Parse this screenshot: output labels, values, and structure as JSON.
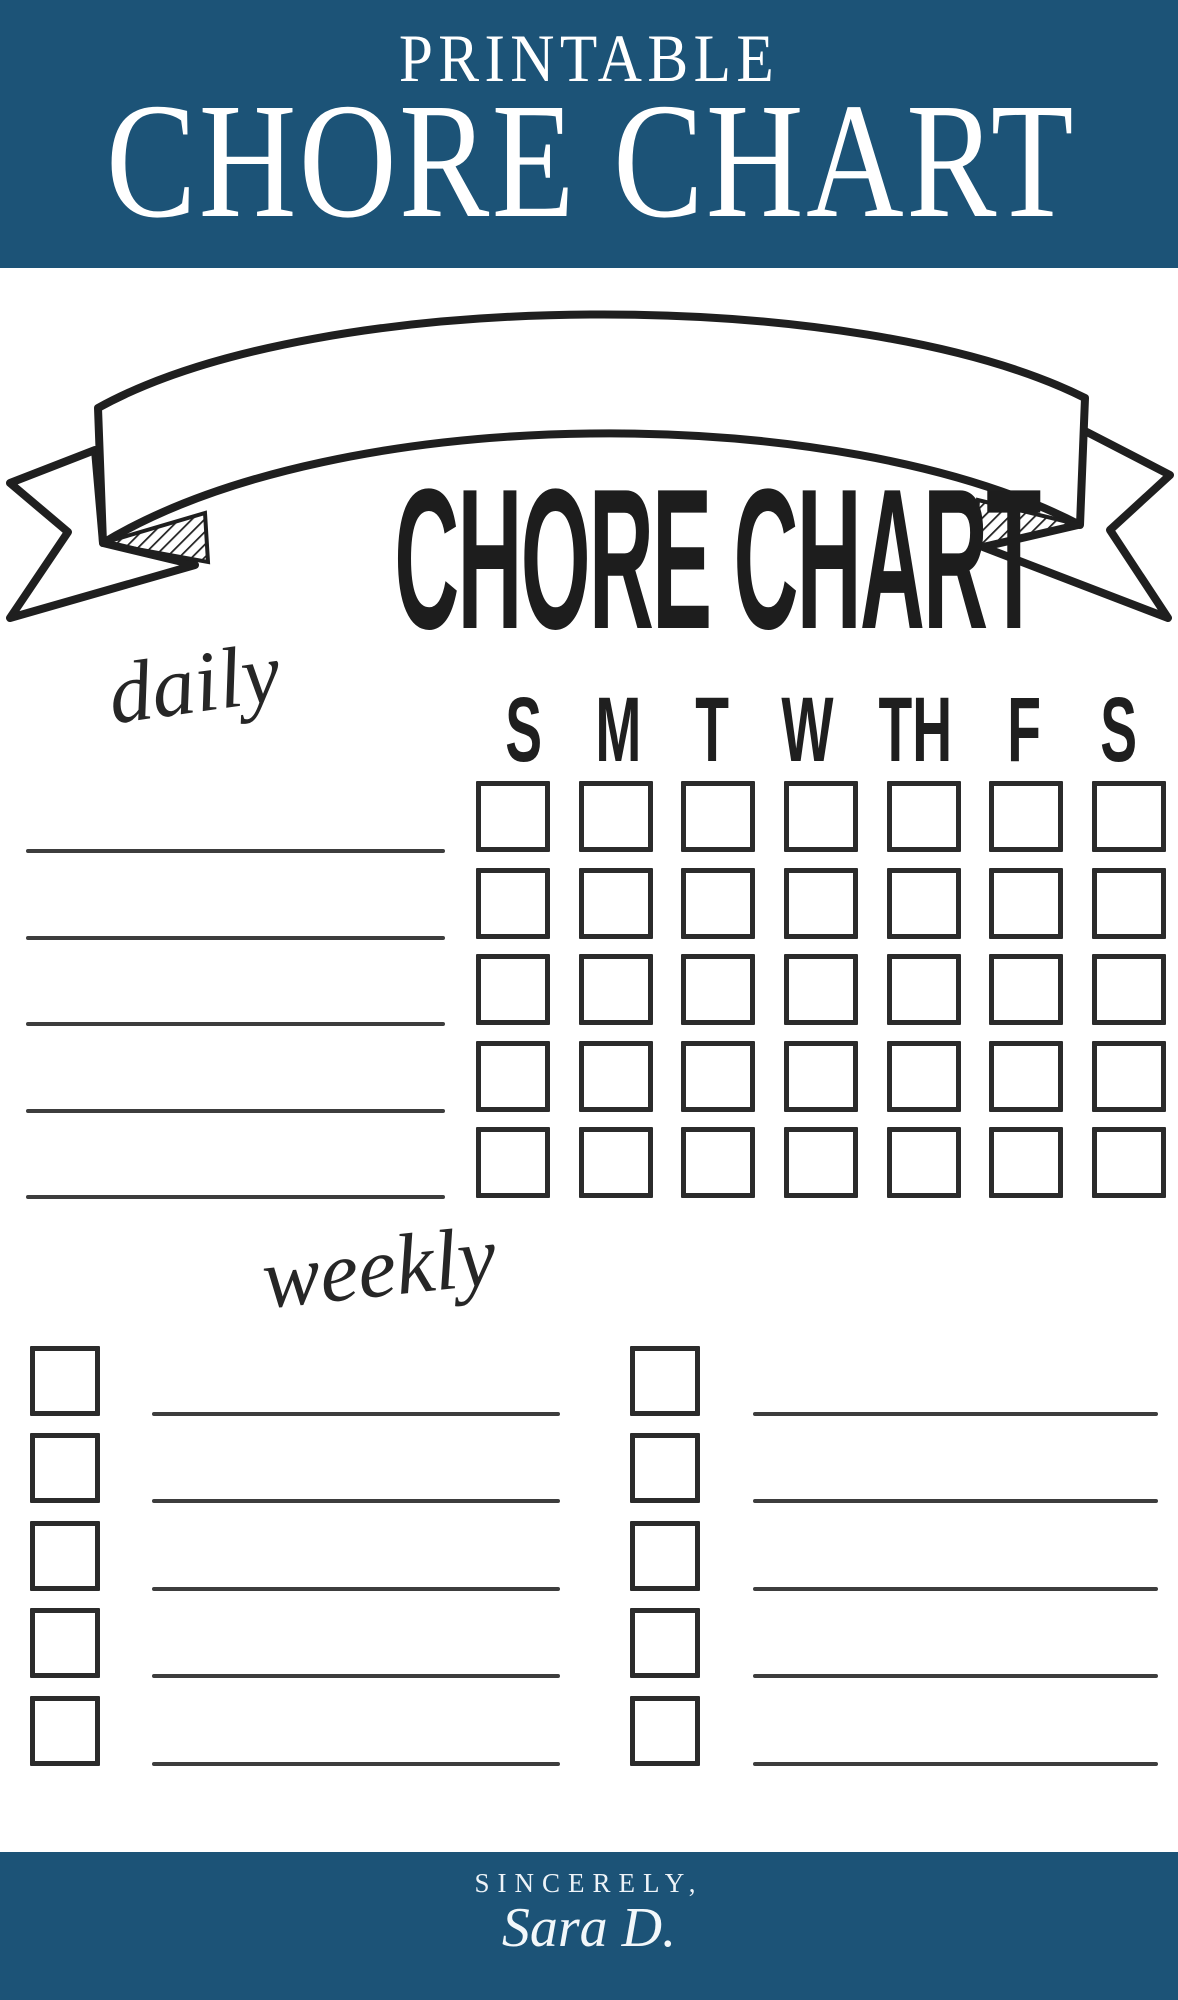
{
  "colors": {
    "blue": "#1c5377",
    "ink": "#222222",
    "paper": "#ffffff"
  },
  "header": {
    "eyebrow": "PRINTABLE",
    "title": "CHORE CHART"
  },
  "banner": {
    "title": "CHORE CHART"
  },
  "daily": {
    "label": "daily",
    "days": [
      "S",
      "M",
      "T",
      "W",
      "TH",
      "F",
      "S"
    ],
    "rows": 5,
    "columns": 7,
    "write_in_lines": 5
  },
  "weekly": {
    "label": "weekly",
    "columns": 2,
    "rows_per_column": 5
  },
  "footer": {
    "closing": "SINCERELY,",
    "signature": "Sara D."
  }
}
